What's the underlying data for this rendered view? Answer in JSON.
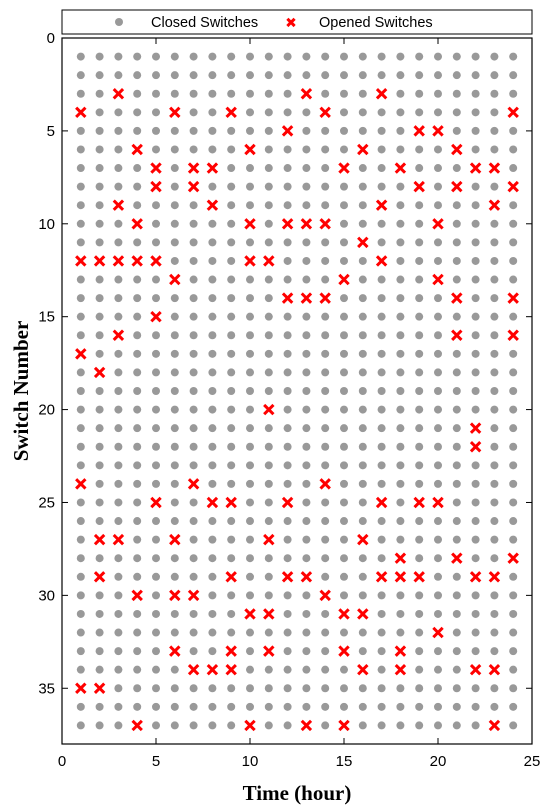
{
  "chart_data": {
    "type": "scatter",
    "xlabel": "Time (hour)",
    "ylabel": "Switch Number",
    "xlim": [
      0,
      25
    ],
    "ylim": [
      0,
      38
    ],
    "y_inverted": true,
    "xticks": [
      0,
      5,
      10,
      15,
      20,
      25
    ],
    "yticks": [
      0,
      5,
      10,
      15,
      20,
      25,
      30,
      35
    ],
    "grid": false,
    "legend_position": "top",
    "hours": 24,
    "switches": 37,
    "series": [
      {
        "name": "Closed Switches",
        "marker": "circle",
        "color": "#999999",
        "description": "all (hour, switch) pairs not listed as opened"
      },
      {
        "name": "Opened Switches",
        "marker": "x",
        "color": "#ff0000",
        "points": [
          [
            1,
            4
          ],
          [
            1,
            12
          ],
          [
            1,
            17
          ],
          [
            1,
            24
          ],
          [
            1,
            35
          ],
          [
            2,
            12
          ],
          [
            2,
            18
          ],
          [
            2,
            27
          ],
          [
            2,
            29
          ],
          [
            2,
            35
          ],
          [
            3,
            3
          ],
          [
            3,
            9
          ],
          [
            3,
            12
          ],
          [
            3,
            16
          ],
          [
            3,
            27
          ],
          [
            4,
            6
          ],
          [
            4,
            10
          ],
          [
            4,
            12
          ],
          [
            4,
            30
          ],
          [
            4,
            37
          ],
          [
            5,
            7
          ],
          [
            5,
            8
          ],
          [
            5,
            12
          ],
          [
            5,
            15
          ],
          [
            5,
            25
          ],
          [
            6,
            4
          ],
          [
            6,
            13
          ],
          [
            6,
            27
          ],
          [
            6,
            30
          ],
          [
            6,
            33
          ],
          [
            7,
            7
          ],
          [
            7,
            8
          ],
          [
            7,
            24
          ],
          [
            7,
            30
          ],
          [
            7,
            34
          ],
          [
            8,
            7
          ],
          [
            8,
            9
          ],
          [
            8,
            25
          ],
          [
            8,
            34
          ],
          [
            9,
            4
          ],
          [
            9,
            25
          ],
          [
            9,
            29
          ],
          [
            9,
            33
          ],
          [
            9,
            34
          ],
          [
            10,
            6
          ],
          [
            10,
            10
          ],
          [
            10,
            12
          ],
          [
            10,
            31
          ],
          [
            10,
            37
          ],
          [
            11,
            12
          ],
          [
            11,
            20
          ],
          [
            11,
            27
          ],
          [
            11,
            31
          ],
          [
            11,
            33
          ],
          [
            12,
            5
          ],
          [
            12,
            10
          ],
          [
            12,
            14
          ],
          [
            12,
            25
          ],
          [
            12,
            29
          ],
          [
            13,
            3
          ],
          [
            13,
            10
          ],
          [
            13,
            14
          ],
          [
            13,
            29
          ],
          [
            13,
            37
          ],
          [
            14,
            4
          ],
          [
            14,
            10
          ],
          [
            14,
            14
          ],
          [
            14,
            24
          ],
          [
            14,
            30
          ],
          [
            15,
            7
          ],
          [
            15,
            13
          ],
          [
            15,
            31
          ],
          [
            15,
            33
          ],
          [
            15,
            37
          ],
          [
            16,
            6
          ],
          [
            16,
            11
          ],
          [
            16,
            27
          ],
          [
            16,
            31
          ],
          [
            16,
            34
          ],
          [
            17,
            3
          ],
          [
            17,
            9
          ],
          [
            17,
            12
          ],
          [
            17,
            25
          ],
          [
            17,
            29
          ],
          [
            18,
            7
          ],
          [
            18,
            28
          ],
          [
            18,
            29
          ],
          [
            18,
            33
          ],
          [
            18,
            34
          ],
          [
            19,
            5
          ],
          [
            19,
            8
          ],
          [
            19,
            25
          ],
          [
            19,
            29
          ],
          [
            20,
            5
          ],
          [
            20,
            10
          ],
          [
            20,
            13
          ],
          [
            20,
            25
          ],
          [
            20,
            32
          ],
          [
            21,
            6
          ],
          [
            21,
            8
          ],
          [
            21,
            14
          ],
          [
            21,
            16
          ],
          [
            21,
            28
          ],
          [
            22,
            7
          ],
          [
            22,
            21
          ],
          [
            22,
            22
          ],
          [
            22,
            29
          ],
          [
            22,
            34
          ],
          [
            23,
            7
          ],
          [
            23,
            9
          ],
          [
            23,
            29
          ],
          [
            23,
            34
          ],
          [
            23,
            37
          ],
          [
            24,
            4
          ],
          [
            24,
            8
          ],
          [
            24,
            14
          ],
          [
            24,
            16
          ],
          [
            24,
            28
          ]
        ]
      }
    ]
  }
}
